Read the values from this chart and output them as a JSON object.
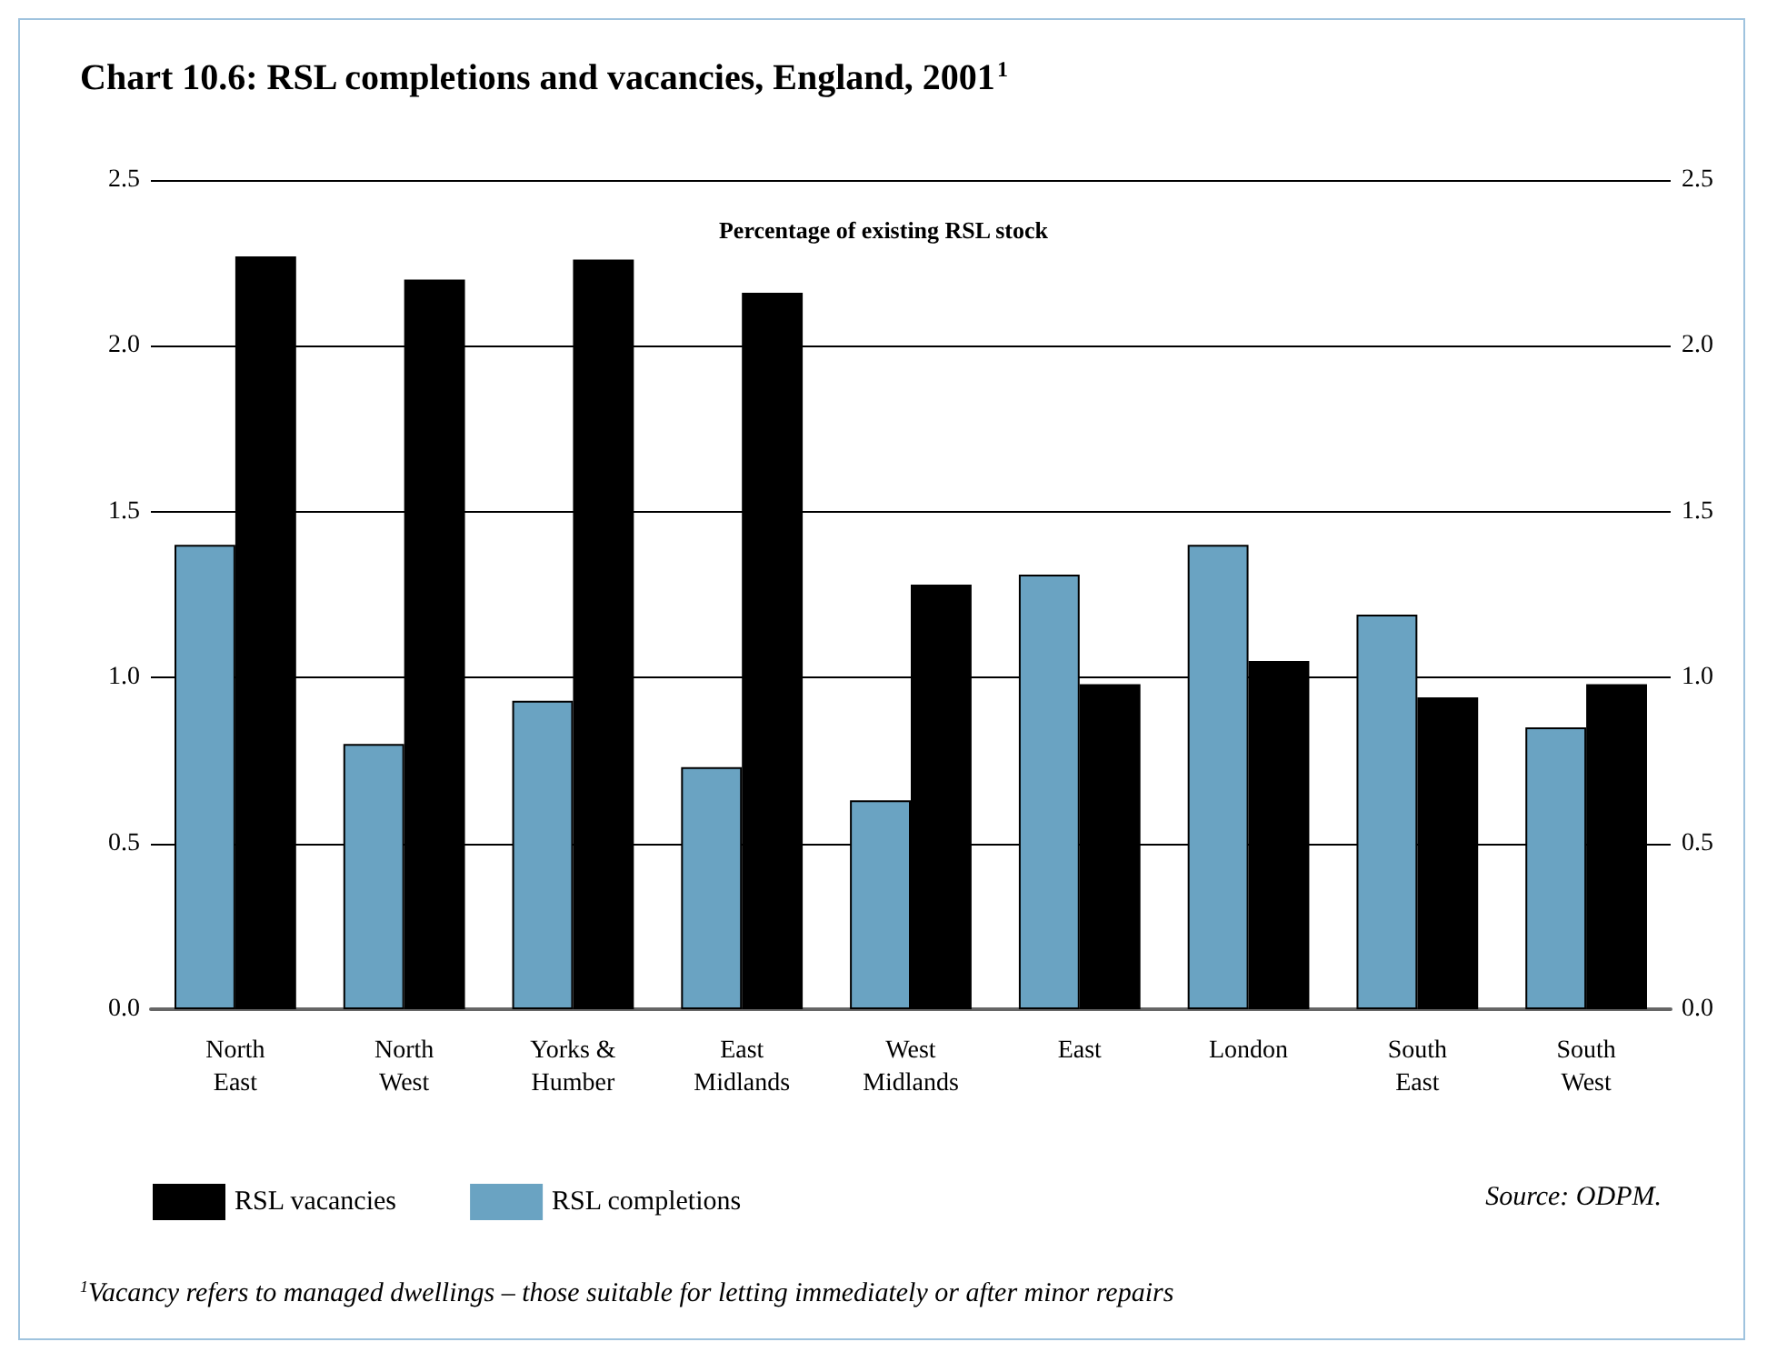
{
  "chart_data": {
    "type": "bar",
    "title": "Chart 10.6: RSL completions and vacancies, England, 2001$^{1}$",
    "subtitle": "Percentage of existing RSL stock",
    "categories": [
      "North\nEast",
      "North\nWest",
      "Yorks &\nHumber",
      "East\nMidlands",
      "West\nMidlands",
      "East",
      "London",
      "South\nEast",
      "South\nWest"
    ],
    "series": [
      {
        "name": "RSL completions",
        "color": "#6aa3c2",
        "values": [
          1.4,
          0.8,
          0.93,
          0.73,
          0.63,
          1.31,
          1.4,
          1.19,
          0.85
        ]
      },
      {
        "name": "RSL vacancies",
        "color": "#000000",
        "values": [
          2.27,
          2.2,
          2.26,
          2.16,
          1.28,
          0.98,
          1.05,
          0.94,
          0.98
        ]
      }
    ],
    "ylim": [
      0,
      2.5
    ],
    "yticks": [
      {
        "value": 0,
        "label": "0.0"
      },
      {
        "value": 0.5,
        "label": "0.5"
      },
      {
        "value": 1,
        "label": "1.0"
      },
      {
        "value": 1.5,
        "label": "1.5"
      },
      {
        "value": 2,
        "label": "2.0"
      },
      {
        "value": 2.5,
        "label": "2.5"
      }
    ],
    "y2lim": [
      0,
      2.5
    ],
    "y2ticks": [
      {
        "value": 0,
        "label": "0.0"
      },
      {
        "value": 0.5,
        "label": "0.5"
      },
      {
        "value": 1,
        "label": "1.0"
      },
      {
        "value": 1.5,
        "label": "1.5"
      },
      {
        "value": 2,
        "label": "2.0"
      },
      {
        "value": 2.5,
        "label": "2.5"
      }
    ],
    "grid": "y",
    "legend": "bottom left",
    "annotations": [
      "Source: ODPM.",
      "$^{1}$Vacancy refers to managed dwellings – those suitable for letting immediately or after minor repairs"
    ]
  }
}
